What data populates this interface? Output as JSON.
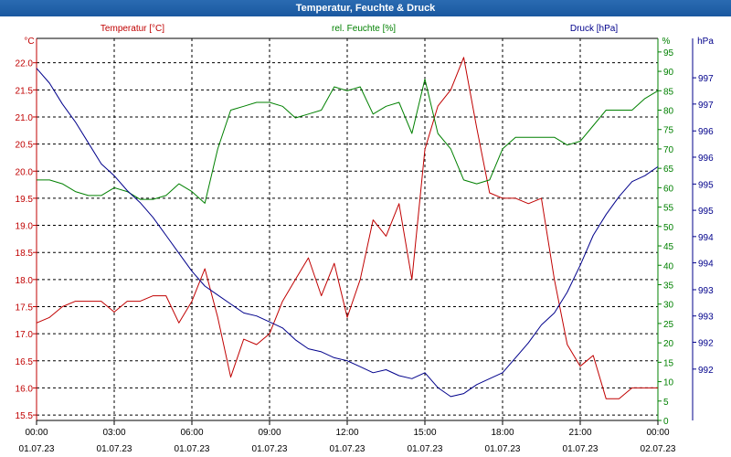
{
  "window": {
    "title": "Temperatur, Feuchte & Druck"
  },
  "colors": {
    "temperature": "#c00000",
    "humidity": "#008000",
    "pressure": "#00008b",
    "grid": "#000000",
    "text": "#000000"
  },
  "chart_data": {
    "type": "line",
    "title": "Temperatur, Feuchte & Druck",
    "legend": [
      "Temperatur [°C]",
      "rel. Feuchte [%]",
      "Druck [hPa]"
    ],
    "x_ticks": [
      {
        "time": "00:00",
        "date": "01.07.23"
      },
      {
        "time": "03:00",
        "date": "01.07.23"
      },
      {
        "time": "06:00",
        "date": "01.07.23"
      },
      {
        "time": "09:00",
        "date": "01.07.23"
      },
      {
        "time": "12:00",
        "date": "01.07.23"
      },
      {
        "time": "15:00",
        "date": "01.07.23"
      },
      {
        "time": "18:00",
        "date": "01.07.23"
      },
      {
        "time": "21:00",
        "date": "01.07.23"
      },
      {
        "time": "00:00",
        "date": "02.07.23"
      }
    ],
    "x_range_hours": [
      0,
      24
    ],
    "axes": {
      "temperature": {
        "unit": "°C",
        "ylim": [
          15.4,
          22.45
        ],
        "ticks": [
          "15.5",
          "16.0",
          "16.5",
          "17.0",
          "17.5",
          "18.0",
          "18.5",
          "19.0",
          "19.5",
          "20.0",
          "20.5",
          "21.0",
          "21.5",
          "22.0"
        ]
      },
      "humidity": {
        "unit": "%",
        "ylim": [
          0,
          98.5
        ],
        "ticks": [
          "0",
          "5",
          "10",
          "15",
          "20",
          "25",
          "30",
          "35",
          "40",
          "45",
          "50",
          "55",
          "60",
          "65",
          "70",
          "75",
          "80",
          "85",
          "90",
          "95"
        ]
      },
      "pressure": {
        "unit": "hPa",
        "ylim": [
          991.2,
          997.6
        ],
        "tick_values": [
          992.06,
          992.51,
          992.95,
          993.39,
          993.84,
          994.28,
          994.72,
          995.16,
          995.61,
          996.05,
          996.5,
          996.94
        ],
        "tick_labels": [
          "992",
          "992",
          "993",
          "993",
          "994",
          "994",
          "995",
          "995",
          "996",
          "996",
          "997",
          "997"
        ]
      }
    },
    "series": [
      {
        "name": "Temperatur [°C]",
        "axis": "temperature",
        "x": [
          0,
          0.5,
          1,
          1.5,
          2,
          2.5,
          3,
          3.5,
          4,
          4.5,
          5,
          5.5,
          6,
          6.5,
          7,
          7.5,
          8,
          8.5,
          9,
          9.5,
          10,
          10.5,
          11,
          11.5,
          12,
          12.5,
          13,
          13.5,
          14,
          14.5,
          15,
          15.5,
          16,
          16.5,
          17,
          17.5,
          18,
          18.5,
          19,
          19.5,
          20,
          20.5,
          21,
          21.5,
          22,
          22.5,
          23,
          23.5,
          24
        ],
        "values": [
          17.2,
          17.3,
          17.5,
          17.6,
          17.6,
          17.6,
          17.4,
          17.6,
          17.6,
          17.7,
          17.7,
          17.2,
          17.6,
          18.2,
          17.3,
          16.2,
          16.9,
          16.8,
          17.0,
          17.6,
          18.0,
          18.4,
          17.7,
          18.3,
          17.3,
          18.0,
          19.1,
          18.8,
          19.4,
          18.0,
          20.4,
          21.2,
          21.5,
          22.1,
          20.8,
          19.6,
          19.5,
          19.5,
          19.4,
          19.5,
          18.0,
          16.8,
          16.4,
          16.6,
          15.8,
          15.8,
          16.0,
          16.0,
          16.0
        ]
      },
      {
        "name": "rel. Feuchte [%]",
        "axis": "humidity",
        "x": [
          0,
          0.5,
          1,
          1.5,
          2,
          2.5,
          3,
          3.5,
          4,
          4.5,
          5,
          5.5,
          6,
          6.5,
          7,
          7.5,
          8,
          8.5,
          9,
          9.5,
          10,
          10.5,
          11,
          11.5,
          12,
          12.5,
          13,
          13.5,
          14,
          14.5,
          15,
          15.5,
          16,
          16.5,
          17,
          17.5,
          18,
          18.5,
          19,
          19.5,
          20,
          20.5,
          21,
          21.5,
          22,
          22.5,
          23,
          23.5,
          24
        ],
        "values": [
          62,
          62,
          61,
          59,
          58,
          58,
          60,
          59,
          57,
          57,
          58,
          61,
          59,
          56,
          70,
          80,
          81,
          82,
          82,
          81,
          78,
          79,
          80,
          86,
          85,
          86,
          79,
          81,
          82,
          74,
          88,
          74,
          70,
          62,
          61,
          62,
          70,
          73,
          73,
          73,
          73,
          71,
          72,
          76,
          80,
          80,
          80,
          83,
          85
        ]
      },
      {
        "name": "Druck [hPa]",
        "axis": "pressure",
        "x": [
          0,
          0.5,
          1,
          1.5,
          2,
          2.5,
          3,
          3.5,
          4,
          4.5,
          5,
          5.5,
          6,
          6.5,
          7,
          7.5,
          8,
          8.5,
          9,
          9.5,
          10,
          10.5,
          11,
          11.5,
          12,
          12.5,
          13,
          13.5,
          14,
          14.5,
          15,
          15.5,
          16,
          16.5,
          17,
          17.5,
          18,
          18.5,
          19,
          19.5,
          20,
          20.5,
          21,
          21.5,
          22,
          22.5,
          23,
          23.5,
          24
        ],
        "values": [
          997.1,
          996.85,
          996.5,
          996.2,
          995.85,
          995.5,
          995.3,
          995.05,
          994.85,
          994.6,
          994.3,
          994.0,
          993.7,
          993.45,
          993.3,
          993.15,
          993.0,
          992.95,
          992.85,
          992.75,
          992.55,
          992.4,
          992.35,
          992.25,
          992.2,
          992.1,
          992.0,
          992.05,
          991.95,
          991.9,
          992.0,
          991.75,
          991.6,
          991.65,
          991.8,
          991.9,
          992.0,
          992.25,
          992.5,
          992.8,
          993.0,
          993.35,
          993.8,
          994.3,
          994.65,
          994.95,
          995.2,
          995.3,
          995.45
        ]
      }
    ]
  }
}
